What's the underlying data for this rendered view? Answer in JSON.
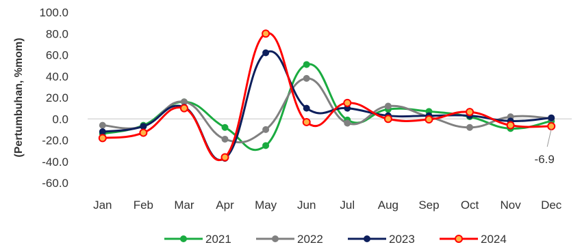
{
  "chart_data": {
    "type": "line",
    "title": "",
    "xlabel": "",
    "ylabel": "(Pertumbuhan, %mom)",
    "categories": [
      "Jan",
      "Feb",
      "Mar",
      "Apr",
      "May",
      "Jun",
      "Jul",
      "Aug",
      "Sep",
      "Oct",
      "Nov",
      "Dec"
    ],
    "ylim": [
      -60,
      100
    ],
    "yticks": [
      "100.0",
      "80.0",
      "60.0",
      "40.0",
      "20.0",
      "0.0",
      "-20.0",
      "-40.0",
      "-60.0"
    ],
    "smooth": true,
    "grid": false,
    "legend_position": "bottom",
    "series": [
      {
        "name": "2021",
        "color": "#1aab40",
        "values": [
          -14.0,
          -6.0,
          16.0,
          -8.0,
          -25.0,
          51.0,
          -1.0,
          9.0,
          7.0,
          2.0,
          -9.0,
          -2.0
        ]
      },
      {
        "name": "2022",
        "color": "#808080",
        "values": [
          -6.0,
          -7.0,
          16.0,
          -19.0,
          -10.0,
          38.0,
          -4.0,
          12.0,
          2.0,
          -8.0,
          2.0,
          0.5
        ]
      },
      {
        "name": "2023",
        "color": "#0d1f5c",
        "values": [
          -12.0,
          -7.0,
          11.0,
          -37.0,
          62.0,
          10.0,
          10.0,
          3.0,
          3.0,
          3.0,
          -2.0,
          1.0
        ]
      },
      {
        "name": "2024",
        "color": "#ff0000",
        "values": [
          -18.0,
          -13.0,
          10.0,
          -36.0,
          80.0,
          -3.0,
          15.0,
          0.0,
          -0.5,
          6.5,
          -6.0,
          -6.9
        ]
      }
    ],
    "annotation": {
      "label": "-6.9",
      "series": "2024",
      "category": "Dec"
    }
  }
}
